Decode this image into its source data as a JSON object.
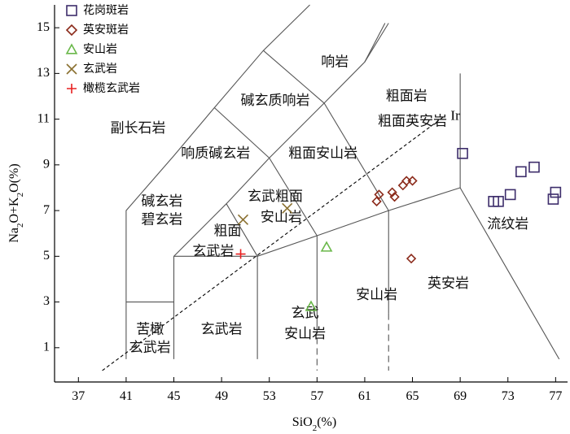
{
  "chart_data": {
    "type": "scatter",
    "title": "",
    "xlabel": "SiO2(%)",
    "ylabel": "Na2O+K2O(%)",
    "xlim": [
      35,
      78
    ],
    "ylim": [
      -0.5,
      16
    ],
    "xticks": [
      37,
      41,
      45,
      49,
      53,
      57,
      61,
      65,
      69,
      73,
      77
    ],
    "yticks": [
      1,
      3,
      5,
      7,
      9,
      11,
      13,
      15
    ],
    "grid": false,
    "legend_position": "top-left",
    "fields": [
      {
        "label": "响岩",
        "x": 58.5,
        "y": 13.5
      },
      {
        "label": "碱玄质响岩",
        "x": 53.5,
        "y": 11.8
      },
      {
        "label": "粗面岩",
        "x": 64.5,
        "y": 12.0
      },
      {
        "label": "粗面英安岩",
        "x": 65.0,
        "y": 10.9
      },
      {
        "label": "副长石岩",
        "x": 42.0,
        "y": 10.6
      },
      {
        "label": "响质碱玄岩",
        "x": 48.5,
        "y": 9.5
      },
      {
        "label": "粗面安山岩",
        "x": 57.5,
        "y": 9.5
      },
      {
        "label": "碱玄岩",
        "x": 44.0,
        "y": 7.4
      },
      {
        "label": "碧玄岩",
        "x": 44.0,
        "y": 6.6
      },
      {
        "label": "玄武粗面",
        "x": 53.5,
        "y": 7.6
      },
      {
        "label": "安山岩",
        "x": 54.0,
        "y": 6.7
      },
      {
        "label": "粗面",
        "x": 49.5,
        "y": 6.1
      },
      {
        "label": "玄武岩",
        "x": 48.3,
        "y": 5.2
      },
      {
        "label": "流纹岩",
        "x": 73.0,
        "y": 6.4
      },
      {
        "label": "苦橄",
        "x": 43.0,
        "y": 1.8
      },
      {
        "label": "玄武岩",
        "x": 43.0,
        "y": 1.0
      },
      {
        "label": "玄武岩",
        "x": 49.0,
        "y": 1.8
      },
      {
        "label": "玄武",
        "x": 56.0,
        "y": 2.5
      },
      {
        "label": "安山岩",
        "x": 56.0,
        "y": 1.6
      },
      {
        "label": "安山岩",
        "x": 62.0,
        "y": 3.3
      },
      {
        "label": "英安岩",
        "x": 68.0,
        "y": 3.8
      }
    ],
    "ir_label": "Ir",
    "series": [
      {
        "name": "花岗斑岩",
        "marker": "square",
        "color": "#3d2d6b",
        "points": [
          [
            69.2,
            9.5
          ],
          [
            71.8,
            7.4
          ],
          [
            72.2,
            7.4
          ],
          [
            73.2,
            7.7
          ],
          [
            74.1,
            8.7
          ],
          [
            75.2,
            8.9
          ],
          [
            76.8,
            7.5
          ],
          [
            77.0,
            7.8
          ]
        ]
      },
      {
        "name": "英安斑岩",
        "marker": "diamond",
        "color": "#8b2a1a",
        "points": [
          [
            62.0,
            7.4
          ],
          [
            62.2,
            7.7
          ],
          [
            63.3,
            7.8
          ],
          [
            63.5,
            7.6
          ],
          [
            64.2,
            8.1
          ],
          [
            64.5,
            8.3
          ],
          [
            65.0,
            8.3
          ],
          [
            64.9,
            4.9
          ]
        ]
      },
      {
        "name": "安山岩",
        "marker": "triangle",
        "color": "#6ab84a",
        "points": [
          [
            57.8,
            5.4
          ],
          [
            56.5,
            2.8
          ]
        ]
      },
      {
        "name": "玄武岩",
        "marker": "x",
        "color": "#8a7030",
        "points": [
          [
            50.8,
            6.6
          ],
          [
            54.5,
            7.1
          ]
        ]
      },
      {
        "name": "橄榄玄武岩",
        "marker": "plus",
        "color": "#e82020",
        "points": [
          [
            50.6,
            5.1
          ]
        ]
      }
    ]
  }
}
